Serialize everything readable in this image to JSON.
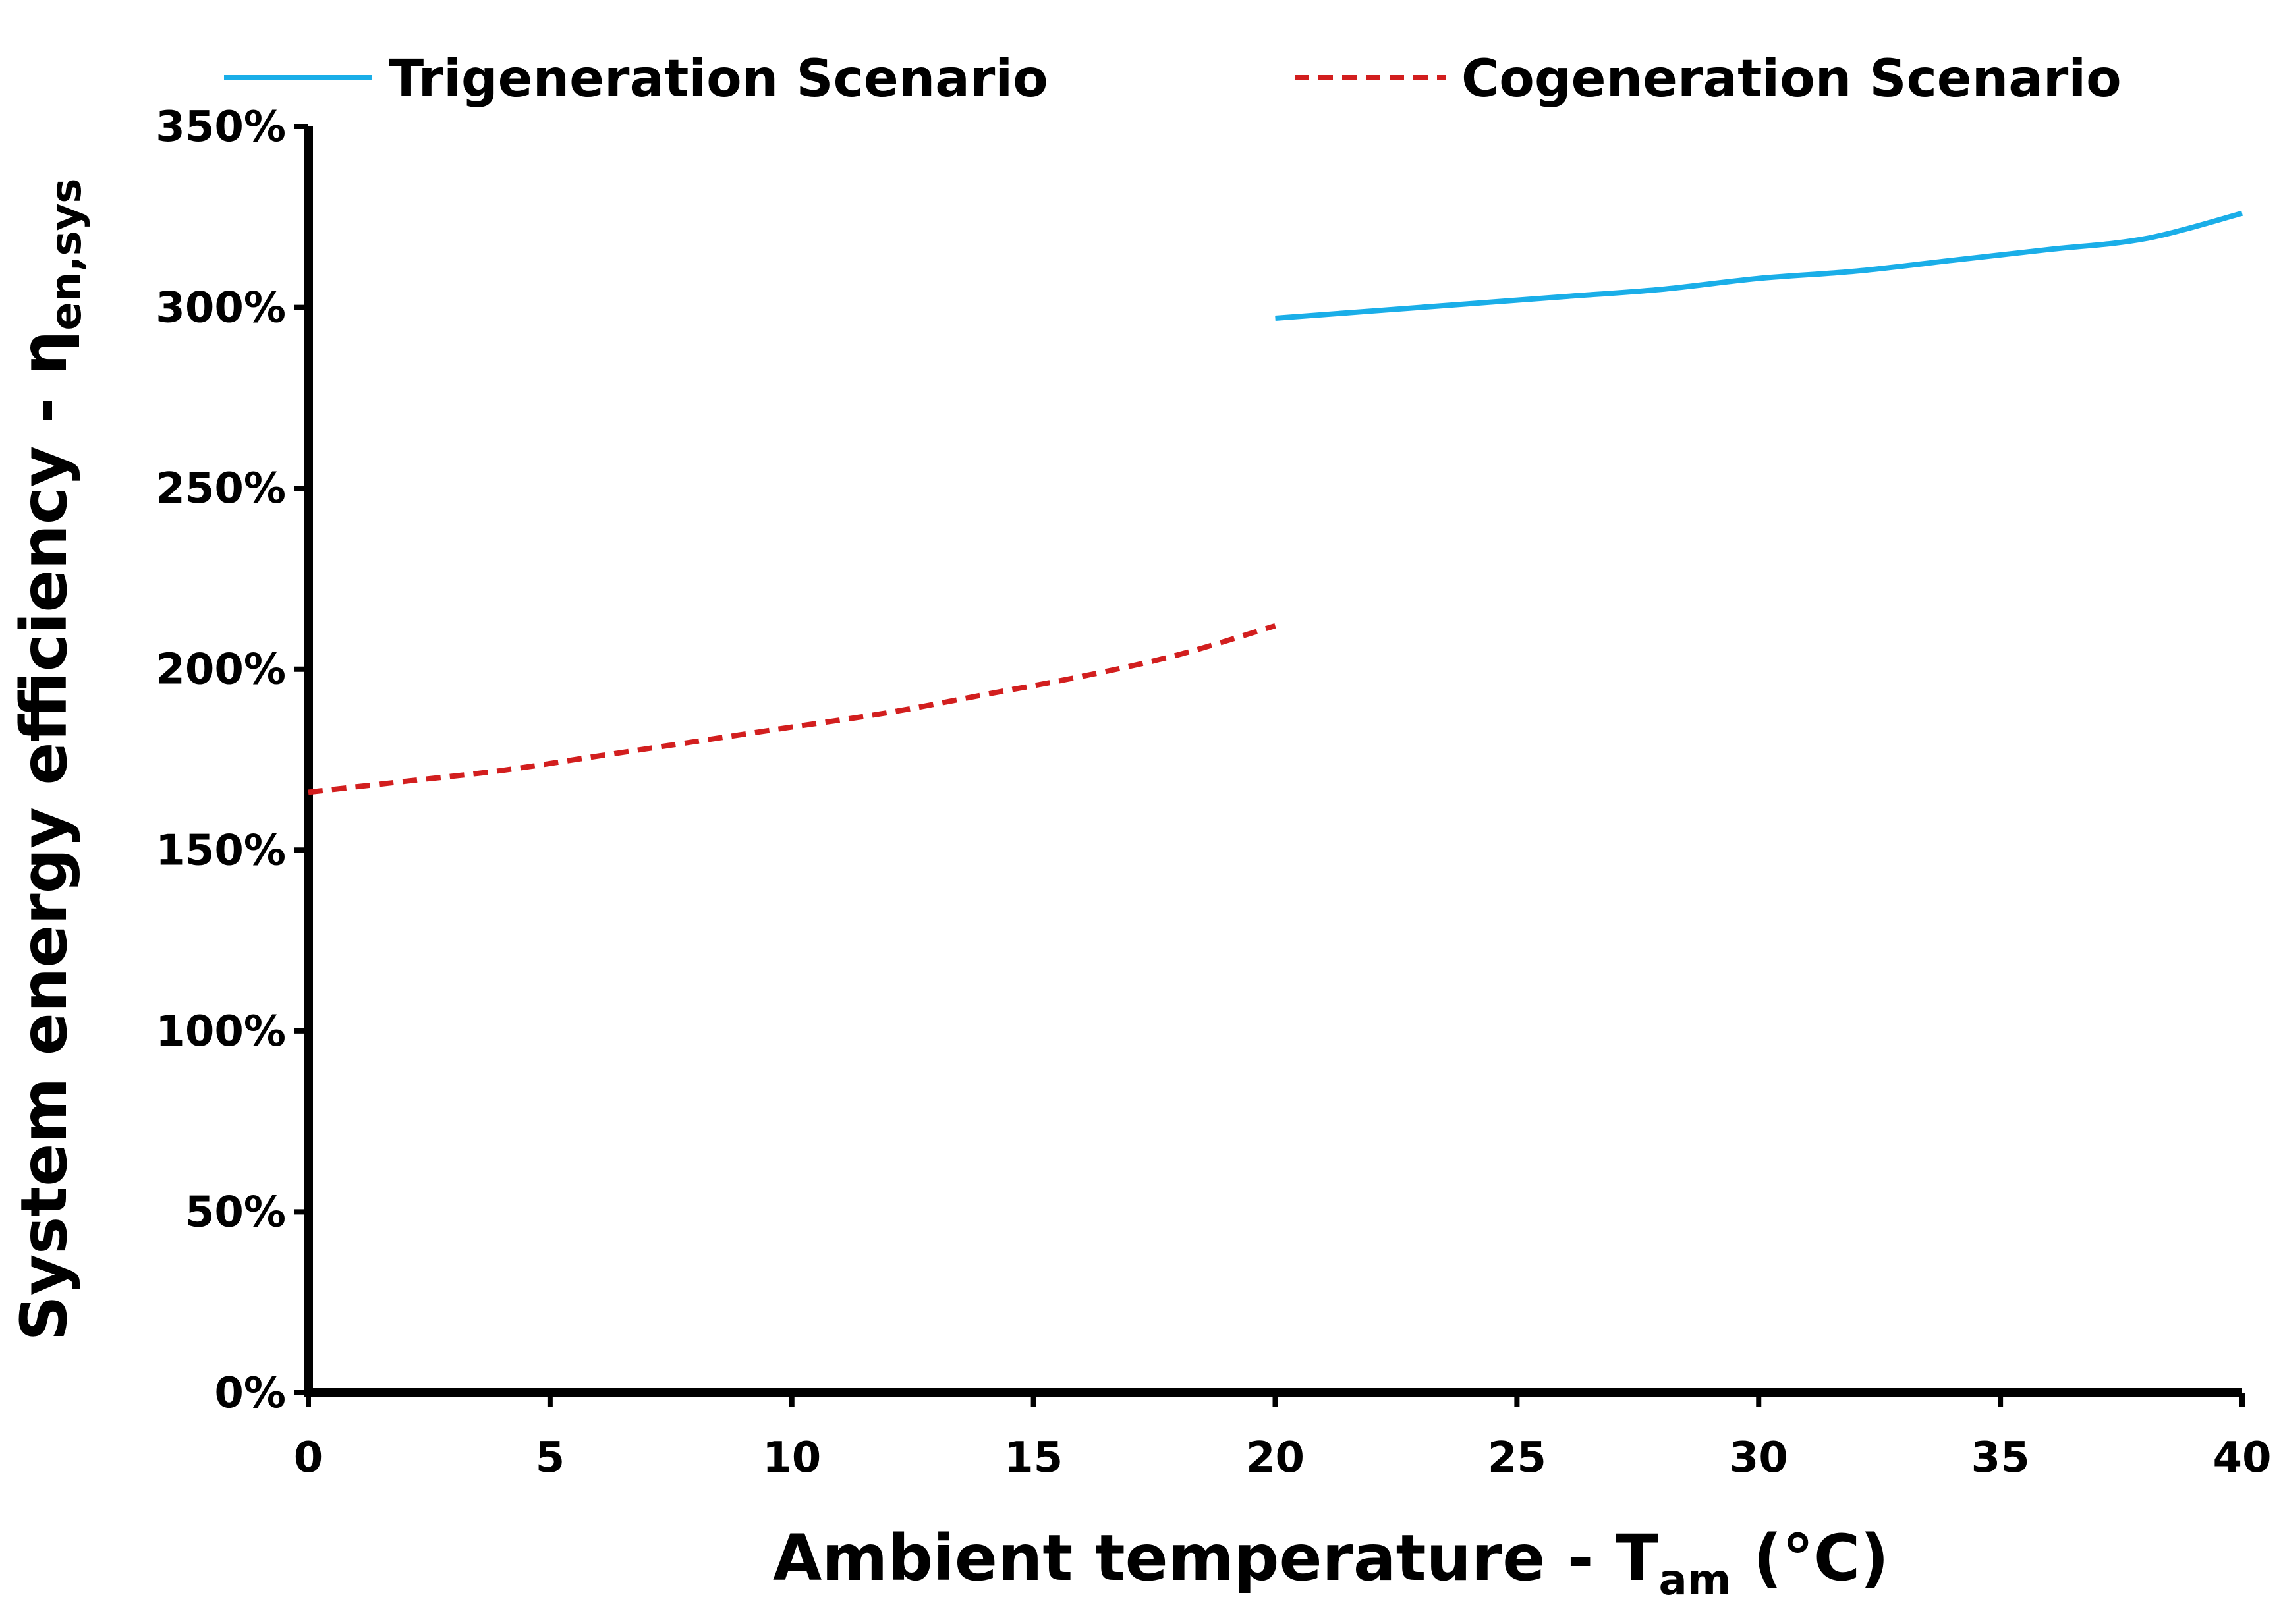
{
  "chart_data": {
    "type": "line",
    "title": "",
    "x": [
      0,
      2,
      4,
      6,
      8,
      10,
      12,
      14,
      16,
      18,
      20,
      22,
      24,
      26,
      28,
      30,
      32,
      34,
      36,
      38,
      40
    ],
    "series": [
      {
        "name": "Trigeneration Scenario",
        "style": "solid",
        "color": "#1aaee8",
        "x": [
          20,
          22,
          24,
          26,
          28,
          30,
          32,
          34,
          36,
          38,
          40
        ],
        "values": [
          2.97,
          2.99,
          3.01,
          3.03,
          3.05,
          3.08,
          3.1,
          3.13,
          3.16,
          3.19,
          3.26
        ]
      },
      {
        "name": "Cogeneration Scenario",
        "style": "dashed",
        "color": "#d21e1e",
        "x": [
          0,
          2,
          4,
          6,
          8,
          10,
          12,
          14,
          16,
          18,
          20
        ],
        "values": [
          1.66,
          1.69,
          1.72,
          1.76,
          1.8,
          1.84,
          1.88,
          1.93,
          1.98,
          2.04,
          2.12
        ]
      }
    ],
    "xlabel": {
      "main": "Ambient temperature - T",
      "sub": "am",
      "unit": " (°C)"
    },
    "ylabel": {
      "main": "System energy efficiency - η",
      "sub": "en,sys"
    },
    "xlim": [
      0,
      40
    ],
    "ylim": [
      0,
      3.5
    ],
    "xticks": [
      0,
      5,
      10,
      15,
      20,
      25,
      30,
      35,
      40
    ],
    "xtick_labels": [
      "0",
      "5",
      "10",
      "15",
      "20",
      "25",
      "30",
      "35",
      "40"
    ],
    "yticks": [
      0,
      0.5,
      1.0,
      1.5,
      2.0,
      2.5,
      3.0,
      3.5
    ],
    "ytick_labels": [
      "0%",
      "50%",
      "100%",
      "150%",
      "200%",
      "250%",
      "300%",
      "350%"
    ],
    "grid": false,
    "legend": "top"
  }
}
